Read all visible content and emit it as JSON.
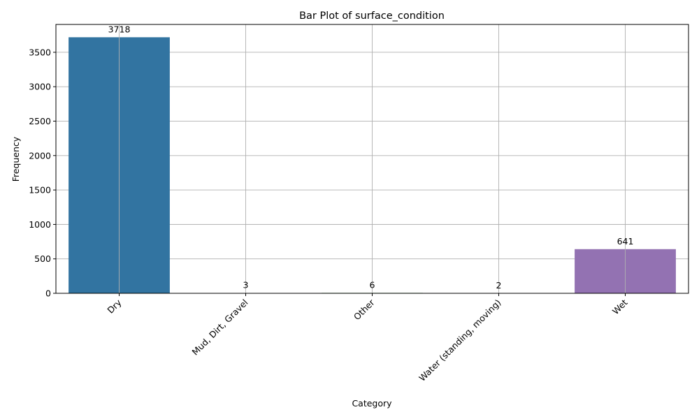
{
  "chart_data": {
    "type": "bar",
    "title": "Bar Plot of surface_condition",
    "xlabel": "Category",
    "ylabel": "Frequency",
    "categories": [
      "Dry",
      "Mud, Dirt, Gravel",
      "Other",
      "Water (standing, moving)",
      "Wet"
    ],
    "values": [
      3718,
      3,
      6,
      2,
      641
    ],
    "data_labels": [
      "3718",
      "3",
      "6",
      "2",
      "641"
    ],
    "colors": [
      "#3274a1",
      "#e1812c",
      "#3a923a",
      "#c03d3e",
      "#9372b2"
    ],
    "ylim": [
      0,
      3904
    ],
    "yticks": [
      0,
      500,
      1000,
      1500,
      2000,
      2500,
      3000,
      3500
    ],
    "ytick_labels": [
      "0",
      "500",
      "1000",
      "1500",
      "2000",
      "2500",
      "3000",
      "3500"
    ],
    "grid": true,
    "legend": "none"
  }
}
